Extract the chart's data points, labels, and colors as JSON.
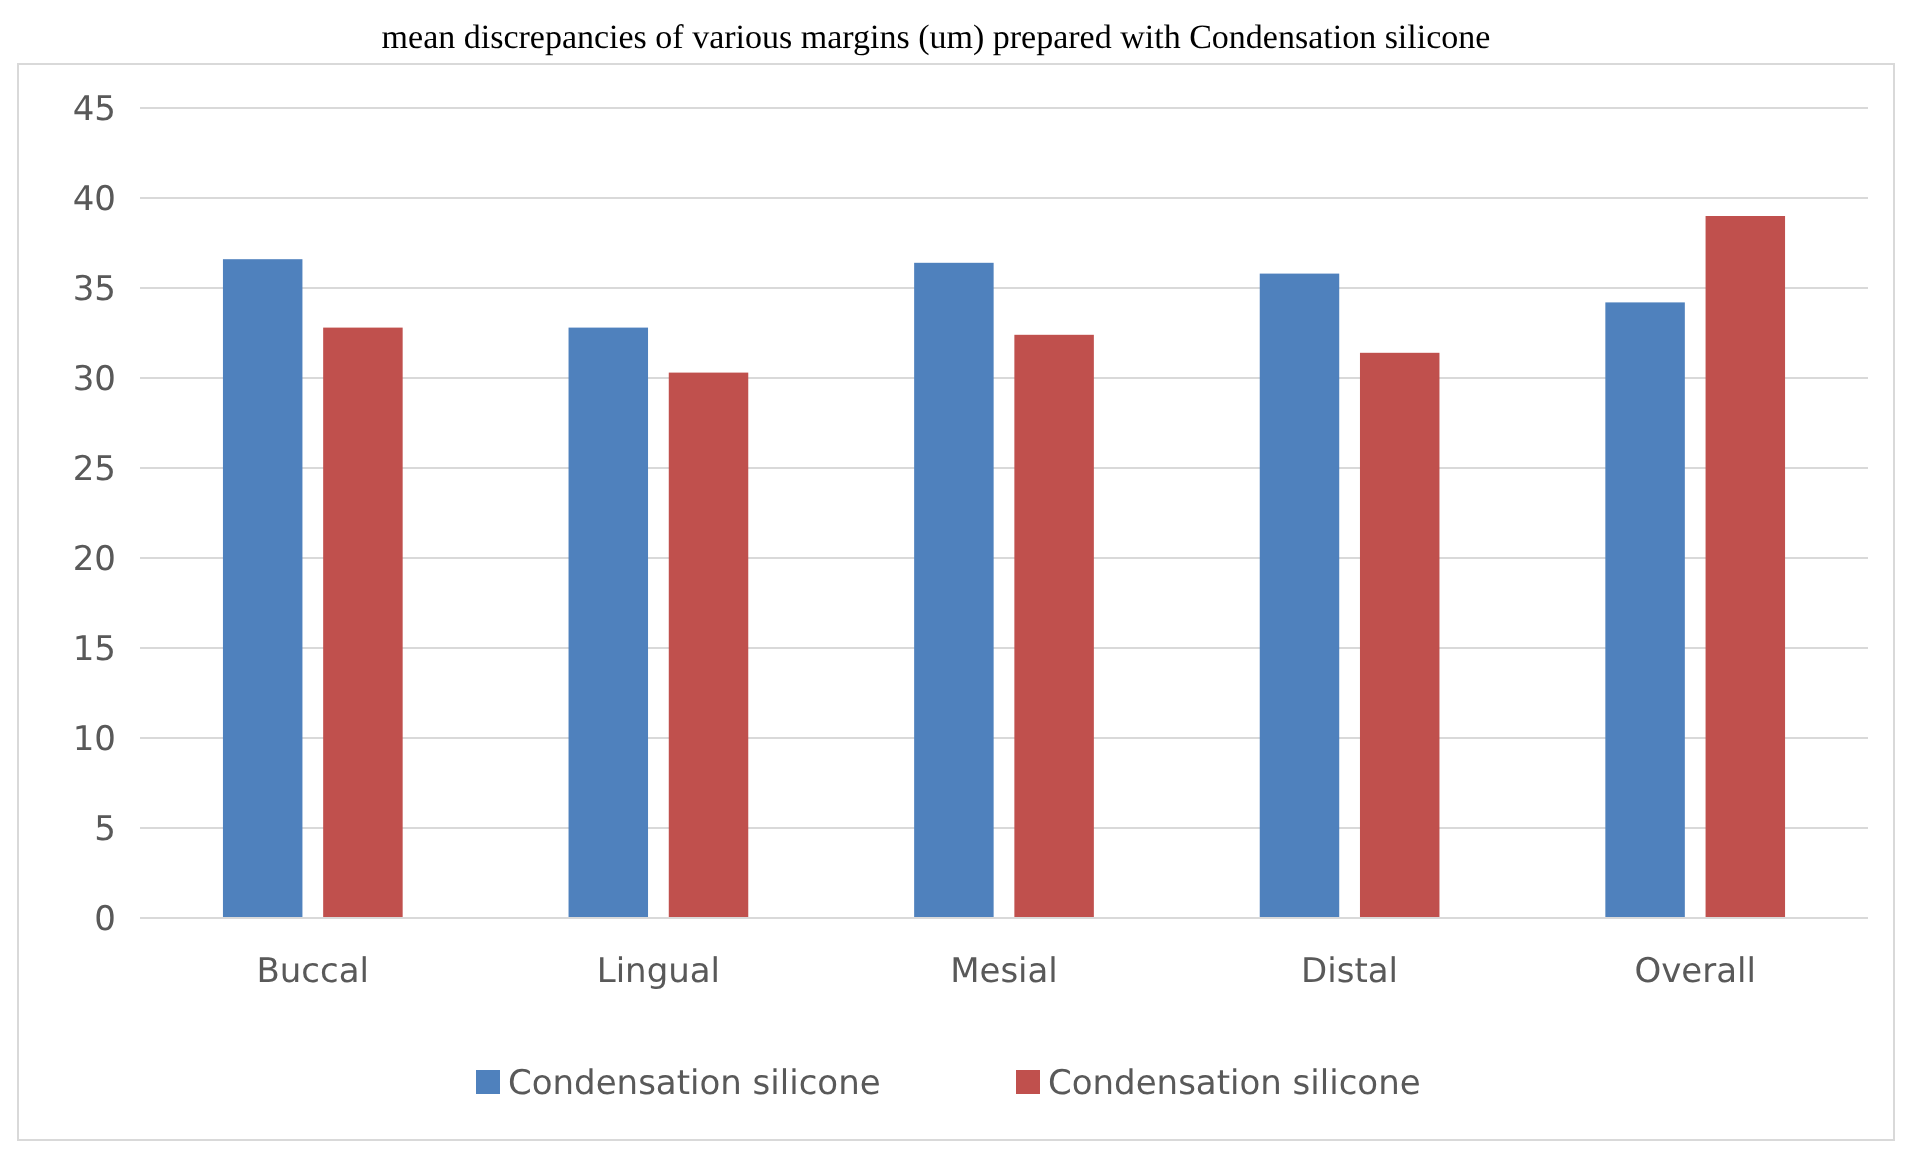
{
  "chart_data": {
    "type": "bar",
    "title": "mean discrepancies of various margins (um) prepared with Condensation silicone",
    "categories": [
      "Buccal",
      "Lingual",
      "Mesial",
      "Distal",
      "Overall"
    ],
    "series": [
      {
        "name": "Condensation silicone",
        "color": "#4f81bd",
        "values": [
          36.6,
          32.8,
          36.4,
          35.8,
          34.2
        ]
      },
      {
        "name": "Condensation silicone",
        "color": "#c0504d",
        "values": [
          32.8,
          30.3,
          32.4,
          31.4,
          39.0
        ]
      }
    ],
    "ylim": [
      0,
      45
    ],
    "yticks": [
      0,
      5,
      10,
      15,
      20,
      25,
      30,
      35,
      40,
      45
    ],
    "grid": "y",
    "legend": "bottom"
  }
}
